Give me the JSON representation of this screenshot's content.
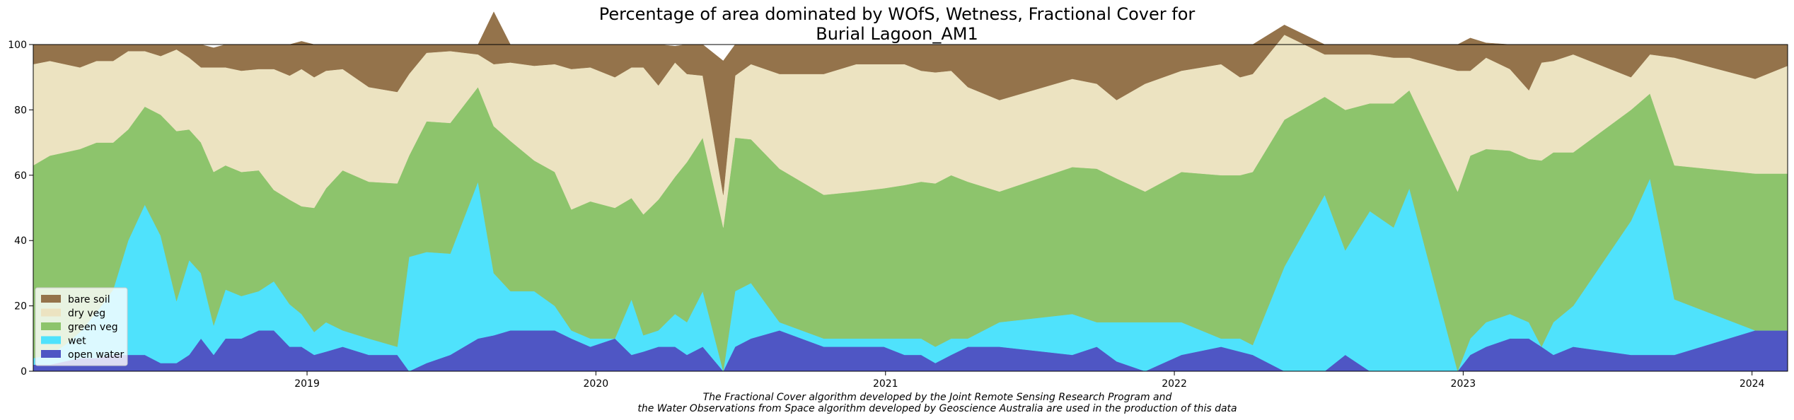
{
  "chart_data": {
    "type": "area",
    "stacked": true,
    "title": "Percentage of area dominated by WOfS, Wetness, Fractional Cover for",
    "subtitle": "Burial Lagoon_AM1",
    "xlabel": "",
    "ylabel": "",
    "xlim": [
      "2018-01-20",
      "2024-02-15"
    ],
    "ylim": [
      0,
      100
    ],
    "x_ticks": [
      "2019",
      "2020",
      "2021",
      "2022",
      "2023",
      "2024"
    ],
    "y_ticks": [
      "0",
      "20",
      "40",
      "60",
      "80",
      "100"
    ],
    "grid": false,
    "legend_position": "lower-left",
    "caption_line1": "The Fractional Cover algorithm developed by the Joint Remote Sensing Research Program and",
    "caption_line2": "the Water Observations from Space algorithm developed by Geoscience Australia are used in the production of this data",
    "x": [
      "2018-01-20",
      "2018-02-10",
      "2018-03-01",
      "2018-03-20",
      "2018-04-10",
      "2018-05-01",
      "2018-05-20",
      "2018-06-10",
      "2018-06-30",
      "2018-07-20",
      "2018-08-05",
      "2018-08-20",
      "2018-09-05",
      "2018-09-20",
      "2018-10-10",
      "2018-11-01",
      "2018-11-20",
      "2018-12-10",
      "2018-12-25",
      "2019-01-10",
      "2019-01-25",
      "2019-02-15",
      "2019-03-20",
      "2019-04-25",
      "2019-05-10",
      "2019-06-01",
      "2019-07-01",
      "2019-08-05",
      "2019-08-25",
      "2019-09-15",
      "2019-10-15",
      "2019-11-10",
      "2019-12-01",
      "2019-12-25",
      "2020-01-25",
      "2020-02-15",
      "2020-03-01",
      "2020-03-20",
      "2020-04-10",
      "2020-04-25",
      "2020-05-15",
      "2020-06-10",
      "2020-06-25",
      "2020-07-15",
      "2020-08-20",
      "2020-10-15",
      "2020-11-25",
      "2020-12-30",
      "2021-01-25",
      "2021-02-15",
      "2021-03-05",
      "2021-03-25",
      "2021-04-15",
      "2021-05-25",
      "2021-08-25",
      "2021-09-25",
      "2021-10-20",
      "2021-11-25",
      "2022-01-10",
      "2022-03-01",
      "2022-03-25",
      "2022-04-10",
      "2022-05-20",
      "2022-07-10",
      "2022-08-05",
      "2022-09-05",
      "2022-10-05",
      "2022-10-25",
      "2022-12-25",
      "2023-01-10",
      "2023-01-30",
      "2023-03-01",
      "2023-03-25",
      "2023-04-10",
      "2023-04-25",
      "2023-05-20",
      "2023-08-01",
      "2023-08-25",
      "2023-09-25",
      "2024-01-05",
      "2024-02-15"
    ],
    "series": [
      {
        "name": "open water",
        "color": "#4f56c4",
        "values": [
          2,
          2,
          3,
          4,
          4,
          5,
          5,
          5,
          2.5,
          2.5,
          5,
          10,
          5,
          10,
          10,
          12.5,
          12.5,
          7.5,
          7.5,
          5,
          6,
          7.5,
          5,
          5,
          0,
          2.5,
          5,
          10,
          11,
          12.5,
          12.5,
          12.5,
          10,
          7.5,
          10,
          5,
          6,
          7.5,
          7.5,
          5,
          7.5,
          0,
          7.5,
          10,
          12.5,
          7.5,
          7.5,
          7.5,
          5,
          5,
          2.5,
          5,
          7.5,
          7.5,
          5,
          7.5,
          3,
          0,
          5,
          7.5,
          6,
          5,
          0,
          0,
          5,
          0,
          0,
          0,
          0,
          5,
          7.5,
          10,
          10,
          7.5,
          5,
          7.5,
          5,
          5,
          5,
          12.5,
          12.5
        ]
      },
      {
        "name": "wet",
        "color": "#4fe2fc",
        "values": [
          2,
          3,
          5,
          8,
          14,
          20,
          35,
          46,
          39,
          19,
          29,
          20,
          9,
          15,
          13,
          12,
          15,
          13,
          10,
          7,
          9,
          5,
          5,
          2.5,
          35,
          34,
          31,
          48,
          19,
          12,
          12,
          7.5,
          2.5,
          2.5,
          0,
          17,
          5,
          5,
          10,
          10,
          17,
          0,
          17,
          17,
          2.5,
          2.5,
          2.5,
          2.5,
          5,
          5,
          5,
          5,
          2.5,
          7.5,
          12.5,
          7.5,
          12,
          15,
          10,
          2.5,
          4,
          3,
          32,
          54,
          32,
          49,
          44,
          56,
          0,
          5,
          7.5,
          7.5,
          5,
          0,
          10,
          12.5,
          41,
          54,
          17,
          0,
          0
        ]
      },
      {
        "name": "green veg",
        "color": "#8dc46c",
        "values": [
          59,
          61,
          59,
          56,
          52,
          45,
          34,
          30,
          37,
          52,
          40,
          40,
          47,
          38,
          38,
          37,
          28,
          32,
          33,
          38,
          41,
          49,
          48,
          50,
          31,
          40,
          40,
          29,
          45,
          46,
          40,
          41,
          37,
          42,
          40,
          31,
          37,
          40,
          42,
          49,
          47,
          44,
          47,
          44,
          47,
          44,
          45,
          46,
          47,
          48,
          50,
          50,
          48,
          40,
          45,
          47,
          44,
          40,
          46,
          50,
          50,
          53,
          45,
          30,
          43,
          33,
          38,
          30,
          55,
          56,
          53,
          50,
          50,
          57,
          52,
          47,
          34,
          26,
          41,
          48,
          48
        ]
      },
      {
        "name": "dry veg",
        "color": "#ece3c1",
        "values": [
          31,
          29,
          27,
          25,
          25,
          25,
          24,
          17,
          18,
          25,
          22,
          23,
          32,
          30,
          31,
          31,
          37,
          38,
          42,
          40,
          36,
          31,
          29,
          28,
          25,
          21,
          22,
          10,
          19,
          24,
          29,
          33,
          43,
          41,
          40,
          40,
          45,
          35,
          35,
          27,
          19,
          10,
          19,
          23,
          29,
          37,
          39,
          38,
          37,
          34,
          34,
          32,
          29,
          28,
          27,
          26,
          24,
          33,
          31,
          34,
          30,
          30,
          26,
          13,
          17,
          15,
          14,
          10,
          37,
          26,
          28,
          25,
          21,
          30,
          28,
          30,
          10,
          12,
          33,
          29,
          33
        ]
      },
      {
        "name": "bare soil",
        "color": "#94734b",
        "values": [
          6,
          5,
          6,
          7,
          5,
          5,
          2,
          2,
          3.5,
          1.5,
          4,
          7,
          6,
          7,
          8,
          7.5,
          7.5,
          9.5,
          8.5,
          10,
          8,
          7.5,
          13,
          14.5,
          9,
          2.5,
          2,
          3,
          16,
          5.5,
          6.5,
          6,
          7.5,
          7,
          10,
          7,
          7,
          12.5,
          5,
          9,
          9.5,
          41,
          9.5,
          6,
          9,
          9,
          6,
          6,
          6,
          8,
          8.5,
          8,
          13,
          17,
          10.5,
          12,
          17,
          12,
          8,
          6,
          10,
          9,
          3,
          3,
          3,
          3,
          4,
          4,
          8,
          10,
          4.5,
          7.5,
          14,
          5.5,
          5,
          3,
          10,
          3,
          4,
          10.5,
          6.5
        ]
      }
    ]
  }
}
